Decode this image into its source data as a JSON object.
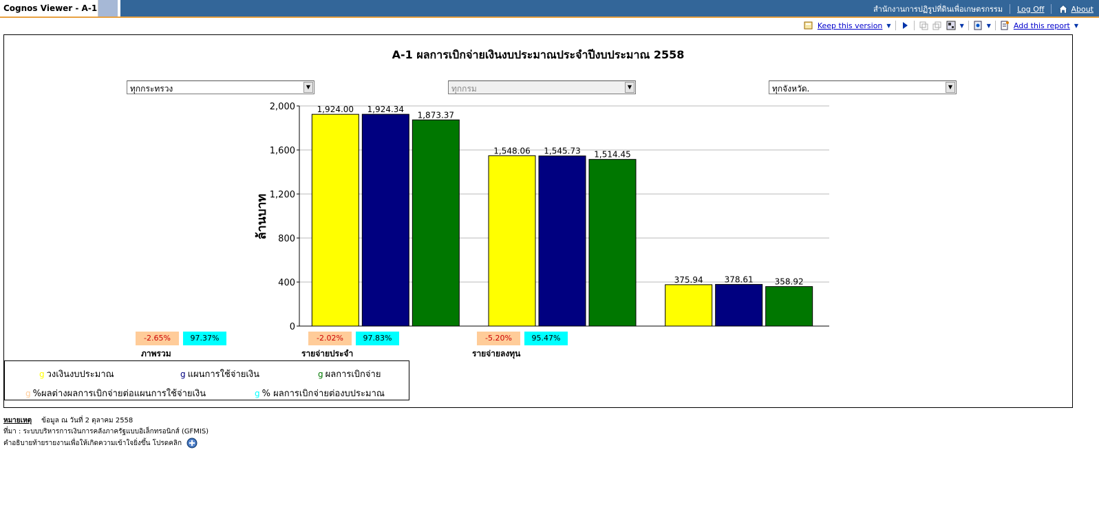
{
  "header": {
    "app_title": "Cognos Viewer - A-1",
    "org_name": "สำนักงานการปฏิรูปที่ดินเพื่อเกษตรกรรม",
    "log_off": "Log Off",
    "about": "About"
  },
  "toolbar": {
    "keep_version": "Keep this version",
    "add_report": "Add this report"
  },
  "report": {
    "title": "A-1 ผลการเบิกจ่ายเงินงบประมาณประจำปีงบประมาณ 2558",
    "filters": {
      "ministry": "ทุกกระทรวง",
      "department": "ทุกกรม",
      "province": "ทุกจังหวัด."
    }
  },
  "chart_data": {
    "type": "bar",
    "ylabel": "ล้านบาท",
    "ylim": [
      0,
      2000
    ],
    "yticks": [
      "0",
      "400",
      "800",
      "1,200",
      "1,600",
      "2,000"
    ],
    "categories": [
      "ภาพรวม",
      "รายจ่ายประจำ",
      "รายจ่ายลงทุน"
    ],
    "grid": true,
    "series": [
      {
        "name": "วงเงินงบประมาณ",
        "color": "#ffff00",
        "values": [
          1924.0,
          1548.06,
          375.94
        ],
        "labels": [
          "1,924.00",
          "1,548.06",
          "375.94"
        ]
      },
      {
        "name": "แผนการใช้จ่ายเงิน",
        "color": "#000080",
        "values": [
          1924.34,
          1545.73,
          378.61
        ],
        "labels": [
          "1,924.34",
          "1,545.73",
          "378.61"
        ]
      },
      {
        "name": "ผลการเบิกจ่าย",
        "color": "#007700",
        "values": [
          1873.37,
          1514.45,
          358.92
        ],
        "labels": [
          "1,873.37",
          "1,514.45",
          "358.92"
        ]
      }
    ],
    "percent_diff": [
      "-2.65%",
      "-2.02%",
      "-5.20%"
    ],
    "percent_rate": [
      "97.37%",
      "97.83%",
      "95.47%"
    ]
  },
  "legend": {
    "marker": "g",
    "items": [
      {
        "label": "วงเงินงบประมาณ",
        "color": "#ffff00"
      },
      {
        "label": "แผนการใช้จ่ายเงิน",
        "color": "#000080"
      },
      {
        "label": "ผลการเบิกจ่าย",
        "color": "#007700"
      },
      {
        "label": "%ผลต่างผลการเบิกจ่ายต่อแผนการใช้จ่ายเงิน",
        "color": "#ffcc99"
      },
      {
        "label": "% ผลการเบิกจ่ายต่องบประมาณ",
        "color": "#00ffff"
      }
    ]
  },
  "notes": {
    "label": "หมายเหตุ",
    "date": "ข้อมูล ณ วันที่ 2  ตุลาคม 2558",
    "source": "ที่มา : ระบบบริหารการเงินการคลังภาครัฐแบบอิเล็กทรอนิกส์ (GFMIS)",
    "more_info": "คำอธิบายท้ายรายงานเพื่อให้เกิดความเข้าใจยิ่งขึ้น โปรดคลิก"
  }
}
